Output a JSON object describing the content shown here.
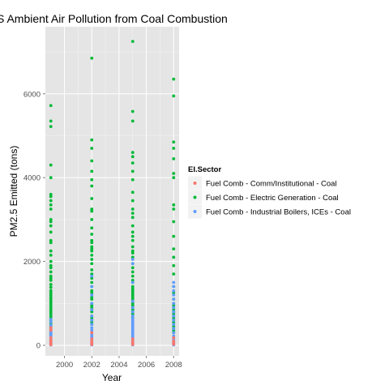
{
  "chart_data": {
    "type": "scatter",
    "title": "S Ambient Air Pollution from Coal Combustion",
    "xlabel": "Year",
    "ylabel": "PM2.5 Emitted (tons)",
    "xlim": [
      1998.6,
      2008.4
    ],
    "ylim": [
      -250,
      7600
    ],
    "x_ticks": [
      2000,
      2002,
      2004,
      2006,
      2008
    ],
    "y_ticks": [
      0,
      2000,
      4000,
      6000
    ],
    "grid": true,
    "legend": {
      "title": "EI.Sector",
      "placement": "right",
      "entries": [
        "Fuel Comb - Comm/Institutional - Coal",
        "Fuel Comb - Electric Generation - Coal",
        "Fuel Comb - Industrial Boilers, ICEs - Coal"
      ]
    },
    "colors": {
      "panel": "#e5e5e5",
      "grid_major": "#ffffff",
      "grid_minor": "#f2f2f2",
      "comm_institutional": "#f8766d",
      "electric_generation": "#00ba38",
      "industrial_boilers": "#619cff"
    },
    "series": [
      {
        "name": "Fuel Comb - Electric Generation - Coal",
        "color_key": "electric_generation",
        "points": [
          {
            "x": 1999,
            "y": [
              5720,
              5350,
              5220,
              4300,
              4000,
              3600,
              3550,
              3450,
              3350,
              3250,
              3000,
              2950,
              2850,
              2700,
              2500,
              2450,
              2250,
              2150,
              2000,
              1900,
              1850,
              1750,
              1650,
              1600,
              1550,
              1450,
              1380,
              1300,
              1250,
              1200,
              1150,
              1100,
              1050,
              1000,
              950,
              900,
              850,
              800,
              750,
              700,
              650,
              600,
              550,
              500,
              450,
              400,
              350,
              300,
              250
            ]
          },
          {
            "x": 2002,
            "y": [
              6850,
              4900,
              4700,
              4400,
              4150,
              3950,
              3800,
              3500,
              3250,
              3200,
              3000,
              2800,
              2650,
              2500,
              2450,
              2350,
              2300,
              2250,
              2150,
              2050,
              1950,
              1800,
              1700,
              1600,
              1500,
              1400,
              1300,
              1250,
              1150,
              1100,
              1000,
              950,
              900,
              850,
              800,
              700,
              650,
              600,
              550,
              500
            ]
          },
          {
            "x": 2005,
            "y": [
              7250,
              5580,
              5350,
              4600,
              4500,
              4350,
              4150,
              3950,
              3650,
              3450,
              3250,
              3150,
              3050,
              2850,
              2700,
              2600,
              2500,
              2350,
              2250,
              2200,
              2100,
              1950,
              1850,
              1750,
              1650,
              1550,
              1500,
              1400,
              1350,
              1300,
              1250,
              1200,
              1150,
              1100,
              1050,
              1000,
              950,
              900,
              850,
              800,
              750,
              700,
              650
            ]
          },
          {
            "x": 2008,
            "y": [
              6350,
              5950,
              4850,
              4700,
              4450,
              4100,
              4000,
              3350,
              3250,
              2950,
              2600,
              2300,
              2100,
              1900,
              1700,
              1400,
              1250,
              1100,
              1000,
              950,
              900,
              850,
              800,
              750,
              700,
              650,
              600,
              550,
              500,
              450,
              400,
              350,
              300
            ]
          }
        ]
      },
      {
        "name": "Fuel Comb - Industrial Boilers, ICEs - Coal",
        "color_key": "industrial_boilers",
        "points": [
          {
            "x": 1999,
            "y": [
              620,
              560,
              480,
              420,
              380,
              320,
              280,
              240,
              200,
              160,
              120,
              90,
              60,
              30,
              10
            ]
          },
          {
            "x": 2002,
            "y": [
              1650,
              1400,
              1200,
              1000,
              850,
              700,
              600,
              500,
              420,
              360,
              300,
              250,
              200,
              150,
              100,
              60,
              30,
              10
            ]
          },
          {
            "x": 2005,
            "y": [
              2050,
              1950,
              1500,
              1050,
              900,
              800,
              700,
              640,
              600,
              560,
              520,
              480,
              440,
              400,
              360,
              320,
              280,
              240,
              200,
              160,
              120,
              80,
              40,
              10
            ]
          },
          {
            "x": 2008,
            "y": [
              1500,
              1400,
              1300,
              1200,
              1100,
              1000,
              900,
              800,
              700,
              600,
              500,
              400,
              300,
              220,
              150,
              100,
              60,
              30,
              10
            ]
          }
        ]
      },
      {
        "name": "Fuel Comb - Comm/Institutional - Coal",
        "color_key": "comm_institutional",
        "points": [
          {
            "x": 1999,
            "y": [
              420,
              360,
              180,
              120,
              80,
              40,
              15
            ]
          },
          {
            "x": 2002,
            "y": [
              300,
              150,
              90,
              50,
              20
            ]
          },
          {
            "x": 2005,
            "y": [
              150,
              90,
              50,
              20
            ]
          },
          {
            "x": 2008,
            "y": [
              180,
              100,
              60,
              25
            ]
          }
        ]
      }
    ]
  }
}
